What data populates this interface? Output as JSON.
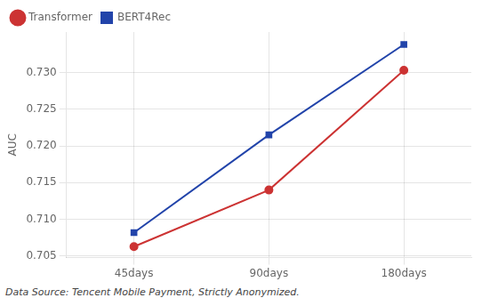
{
  "chart_data": {
    "type": "line",
    "categories": [
      "45days",
      "90days",
      "180days"
    ],
    "series": [
      {
        "name": "Transformer",
        "color": "#cc3333",
        "marker": "circle",
        "values": [
          0.7063,
          0.714,
          0.7303
        ]
      },
      {
        "name": "BERT4Rec",
        "color": "#2244aa",
        "marker": "square",
        "values": [
          0.7082,
          0.7215,
          0.7338
        ]
      }
    ],
    "ylabel": "AUC",
    "ylim": [
      0.7048,
      0.7355
    ],
    "yticks": [
      0.705,
      {
        "value": 0.71,
        "label": "0.710"
      },
      0.715,
      {
        "value": 0.72,
        "label": "0.720"
      },
      0.725,
      {
        "value": 0.73,
        "label": "0.730"
      }
    ],
    "grid": true,
    "legend": "upper left",
    "footnote": "Data Source: Tencent Mobile Payment, Strictly Anonymized."
  }
}
